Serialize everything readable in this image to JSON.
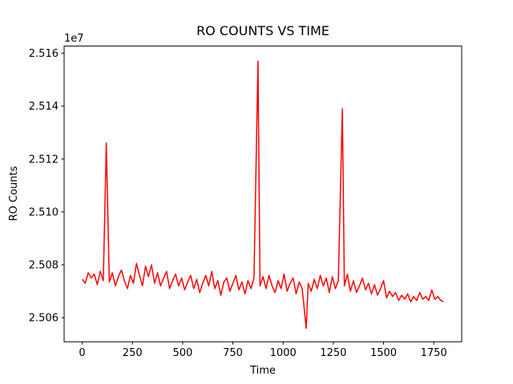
{
  "chart_data": {
    "type": "line",
    "title": "RO COUNTS VS TIME",
    "x_label": "Time",
    "y_label": "RO Counts",
    "y_offset_label": "1e7",
    "x": [
      0,
      15,
      30,
      45,
      60,
      75,
      90,
      105,
      120,
      135,
      150,
      165,
      180,
      195,
      210,
      225,
      240,
      255,
      270,
      285,
      300,
      315,
      330,
      345,
      360,
      375,
      390,
      405,
      420,
      435,
      450,
      465,
      480,
      495,
      510,
      525,
      540,
      555,
      570,
      585,
      600,
      615,
      630,
      645,
      660,
      675,
      690,
      705,
      720,
      735,
      750,
      765,
      780,
      795,
      810,
      825,
      840,
      855,
      875,
      885,
      900,
      915,
      930,
      945,
      960,
      975,
      990,
      1005,
      1020,
      1035,
      1050,
      1065,
      1080,
      1095,
      1115,
      1125,
      1140,
      1155,
      1170,
      1185,
      1200,
      1215,
      1230,
      1245,
      1260,
      1275,
      1295,
      1305,
      1320,
      1335,
      1350,
      1365,
      1380,
      1395,
      1410,
      1425,
      1440,
      1455,
      1470,
      1485,
      1500,
      1515,
      1530,
      1545,
      1560,
      1575,
      1590,
      1605,
      1620,
      1635,
      1650,
      1665,
      1680,
      1695,
      1710,
      1725,
      1740,
      1755,
      1770,
      1785,
      1799
    ],
    "series": [
      {
        "name": "RO Counts",
        "color": "#ff0000",
        "values": [
          25074500,
          25073000,
          25077000,
          25075000,
          25076500,
          25072500,
          25077500,
          25074000,
          25126000,
          25073500,
          25077000,
          25072000,
          25075500,
          25078000,
          25074000,
          25071000,
          25076000,
          25073000,
          25080500,
          25076000,
          25072000,
          25079500,
          25075500,
          25080000,
          25073000,
          25077000,
          25072000,
          25075000,
          25077500,
          25071000,
          25074000,
          25076500,
          25072000,
          25075000,
          25070500,
          25073500,
          25076000,
          25071000,
          25074500,
          25069500,
          25073000,
          25076000,
          25072000,
          25077500,
          25071000,
          25074000,
          25068500,
          25073500,
          25075000,
          25070000,
          25073000,
          25076000,
          25070500,
          25073500,
          25069000,
          25074000,
          25071000,
          25075000,
          25157000,
          25072000,
          25075500,
          25071000,
          25076000,
          25072000,
          25069500,
          25074000,
          25071000,
          25076500,
          25070000,
          25073000,
          25075000,
          25069000,
          25073500,
          25071000,
          25056000,
          25073000,
          25070000,
          25074500,
          25071000,
          25076000,
          25072000,
          25075000,
          25069500,
          25075500,
          25071000,
          25074000,
          25139000,
          25072000,
          25076500,
          25070000,
          25074000,
          25069500,
          25072000,
          25075000,
          25070500,
          25073000,
          25069000,
          25072500,
          25068500,
          25071000,
          25074000,
          25067500,
          25070000,
          25068000,
          25069500,
          25066500,
          25068500,
          25067000,
          25069000,
          25066000,
          25068000,
          25066500,
          25069500,
          25067000,
          25068000,
          25066500,
          25070500,
          25067000,
          25068000,
          25066500,
          25066000
        ]
      }
    ],
    "xlim": [
      -90,
      1889
    ],
    "xticks": [
      0,
      250,
      500,
      750,
      1000,
      1250,
      1500,
      1750
    ],
    "ylim": [
      25050900,
      25162700
    ],
    "yticks": [
      {
        "value": 25060000,
        "label": "2.506"
      },
      {
        "value": 25080000,
        "label": "2.508"
      },
      {
        "value": 25100000,
        "label": "2.510"
      },
      {
        "value": 25120000,
        "label": "2.512"
      },
      {
        "value": 25140000,
        "label": "2.514"
      },
      {
        "value": 25160000,
        "label": "2.516"
      }
    ],
    "grid": false
  }
}
